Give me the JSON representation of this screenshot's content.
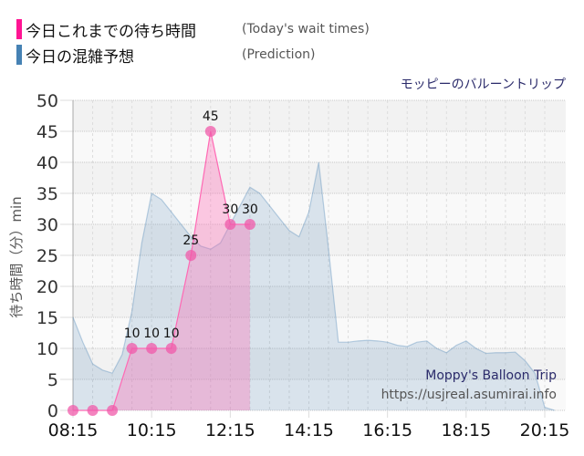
{
  "legend": {
    "items": [
      {
        "jp": "今日これまでの待ち時間",
        "en": "(Today's wait times)",
        "color": "#ff1493"
      },
      {
        "jp": "今日の混雑予想",
        "en": "(Prediction)",
        "color": "#4682b4"
      }
    ]
  },
  "ride_title": "モッピーのバルーントリップ",
  "watermark": {
    "line1": "Moppy's Balloon Trip",
    "line2": "https://usjreal.asumirai.info"
  },
  "chart_data": {
    "type": "area",
    "title": "モッピーのバルーントリップ",
    "xlabel": "",
    "ylabel": "待ち時間（分）min",
    "ylim": [
      0,
      50
    ],
    "yticks": [
      0,
      5,
      10,
      15,
      20,
      25,
      30,
      35,
      40,
      45,
      50
    ],
    "xticks": [
      "08:15",
      "10:15",
      "12:15",
      "14:15",
      "16:15",
      "18:15",
      "20:15"
    ],
    "grid": true,
    "legend_position": "top-left",
    "series": [
      {
        "name": "今日これまでの待ち時間 (Today's wait times)",
        "color": "#ff69b4",
        "x": [
          "08:15",
          "08:45",
          "09:15",
          "09:45",
          "10:15",
          "10:45",
          "11:15",
          "11:45",
          "12:15",
          "12:45"
        ],
        "values": [
          0,
          0,
          0,
          10,
          10,
          10,
          25,
          45,
          30,
          30
        ],
        "labels": [
          "",
          "",
          "",
          "10",
          "10",
          "10",
          "25",
          "45",
          "30",
          "30"
        ]
      },
      {
        "name": "今日の混雑予想 (Prediction)",
        "color": "#4682b4",
        "x": [
          "08:15",
          "08:30",
          "08:45",
          "09:00",
          "09:15",
          "09:30",
          "09:45",
          "10:00",
          "10:15",
          "10:30",
          "10:45",
          "11:00",
          "11:15",
          "11:30",
          "11:45",
          "12:00",
          "12:15",
          "12:30",
          "12:45",
          "13:00",
          "13:15",
          "13:30",
          "13:45",
          "14:00",
          "14:15",
          "14:30",
          "14:45",
          "15:00",
          "15:15",
          "15:30",
          "15:45",
          "16:00",
          "16:15",
          "16:30",
          "16:45",
          "17:00",
          "17:15",
          "17:30",
          "17:45",
          "18:00",
          "18:15",
          "18:30",
          "18:45",
          "19:00",
          "19:15",
          "19:30",
          "19:45",
          "20:00",
          "20:15",
          "20:30"
        ],
        "values": [
          15,
          11,
          7.5,
          6.5,
          6,
          9,
          16,
          27,
          35,
          34,
          32,
          30,
          28,
          26.5,
          26,
          27,
          30,
          33,
          36,
          35,
          33,
          31,
          29,
          28,
          32,
          40,
          26,
          11,
          11,
          11.2,
          11.3,
          11.2,
          11,
          10.5,
          10.3,
          11,
          11.2,
          10,
          9.3,
          10.5,
          11.2,
          10,
          9.2,
          9.3,
          9.3,
          9.4,
          8,
          6,
          0.5,
          0
        ]
      }
    ]
  }
}
